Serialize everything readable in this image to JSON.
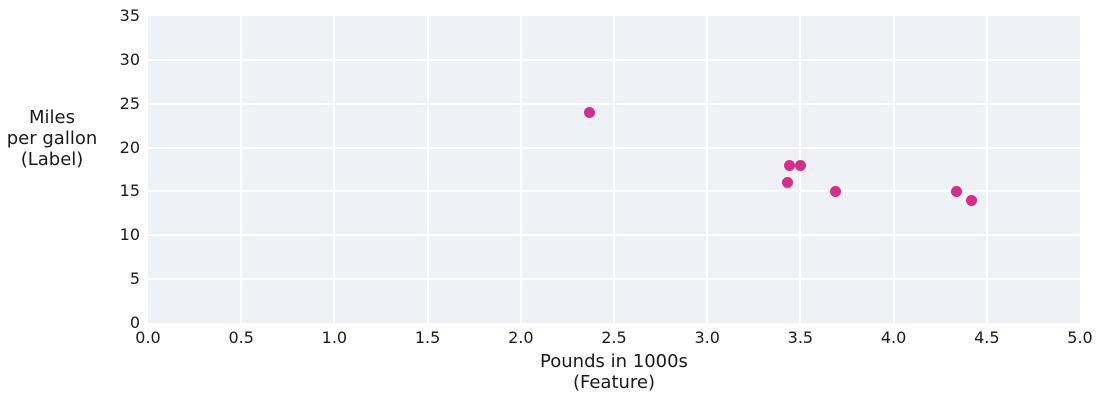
{
  "chart_data": {
    "type": "scatter",
    "title": "",
    "xlabel_lines": [
      "Pounds in 1000s",
      "(Feature)"
    ],
    "ylabel_lines": [
      "Miles",
      "per gallon",
      "(Label)"
    ],
    "x": [
      3.5,
      3.69,
      3.44,
      3.43,
      4.34,
      4.42,
      2.37
    ],
    "y": [
      18,
      15,
      18,
      16,
      15,
      14,
      24
    ],
    "points": [
      {
        "x": 3.5,
        "y": 18
      },
      {
        "x": 3.69,
        "y": 15
      },
      {
        "x": 3.44,
        "y": 18
      },
      {
        "x": 3.43,
        "y": 16
      },
      {
        "x": 4.34,
        "y": 15
      },
      {
        "x": 4.42,
        "y": 14
      },
      {
        "x": 2.37,
        "y": 24
      }
    ],
    "xlim": [
      0,
      5
    ],
    "ylim": [
      0,
      35
    ],
    "xticks": {
      "values": [
        0,
        0.5,
        1.0,
        1.5,
        2.0,
        2.5,
        3.0,
        3.5,
        4.0,
        4.5,
        5.0
      ],
      "labels": [
        "0.0",
        "0.5",
        "1.0",
        "1.5",
        "2.0",
        "2.5",
        "3.0",
        "3.5",
        "4.0",
        "4.5",
        "5.0"
      ]
    },
    "yticks": {
      "values": [
        0,
        5,
        10,
        15,
        20,
        25,
        30,
        35
      ],
      "labels": [
        "0",
        "5",
        "10",
        "15",
        "20",
        "25",
        "30",
        "35"
      ]
    },
    "grid": true,
    "legend": "none",
    "colors": {
      "point": "#d42e86",
      "plot_bg": "#eef1f6",
      "grid": "#ffffff",
      "text": "#1a1a1a",
      "page_bg": "#ffffff"
    }
  }
}
